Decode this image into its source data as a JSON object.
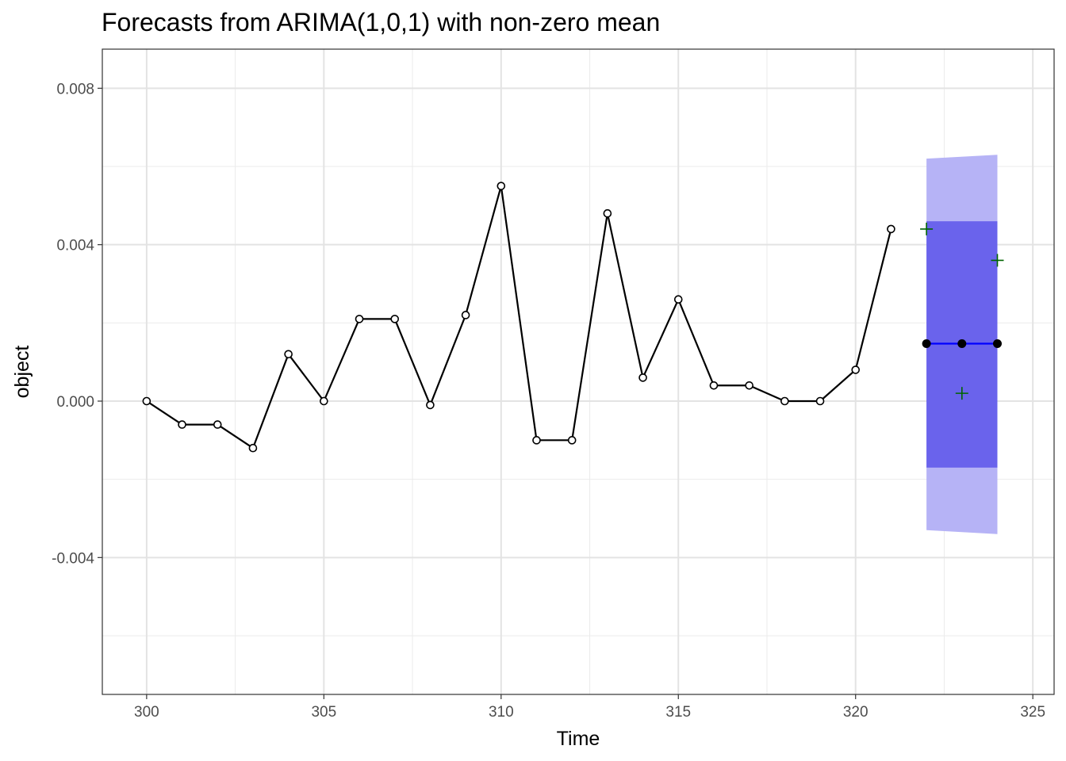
{
  "chart_data": {
    "type": "line",
    "title": "Forecasts from ARIMA(1,0,1) with non-zero mean",
    "xlabel": "Time",
    "ylabel": "object",
    "xlim": [
      298.75,
      325.6
    ],
    "ylim": [
      -0.0075,
      0.009
    ],
    "x_ticks": [
      300,
      305,
      310,
      315,
      320,
      325
    ],
    "x_tick_labels": [
      "300",
      "305",
      "310",
      "315",
      "320",
      "325"
    ],
    "y_ticks": [
      -0.004,
      0.0,
      0.004,
      0.008
    ],
    "y_tick_labels": [
      "-0.004",
      "0.000",
      "0.004",
      "0.008"
    ],
    "grid": true,
    "legend": "none",
    "series": [
      {
        "role": "observed",
        "x": [
          300,
          301,
          302,
          303,
          304,
          305,
          306,
          307,
          308,
          309,
          310,
          311,
          312,
          313,
          314,
          315,
          316,
          317,
          318,
          319,
          320,
          321
        ],
        "y": [
          0.0,
          -0.0006,
          -0.0006,
          -0.0012,
          0.0012,
          0.0,
          0.0021,
          0.0021,
          -0.0001,
          0.0022,
          0.0055,
          -0.001,
          -0.001,
          0.0048,
          0.0006,
          0.0026,
          0.0004,
          0.0004,
          0.0,
          0.0,
          0.0008,
          0.0044
        ],
        "color": "#000000",
        "marker": "open-circle"
      },
      {
        "role": "forecast-mean",
        "x": [
          322,
          323,
          324
        ],
        "y": [
          0.00147,
          0.00147,
          0.00147
        ],
        "color": "#0000ff",
        "marker": "filled-circle"
      },
      {
        "role": "actual",
        "x": [
          322,
          323,
          324
        ],
        "y": [
          0.0044,
          0.0002,
          0.0036
        ],
        "color": "#006400",
        "marker": "plus"
      }
    ],
    "intervals": [
      {
        "level": 95,
        "x": [
          322,
          324
        ],
        "lower": [
          -0.0033,
          -0.0034
        ],
        "upper": [
          0.0062,
          0.0063
        ],
        "color": "#b6b3f6"
      },
      {
        "level": 80,
        "x": [
          322,
          324
        ],
        "lower": [
          -0.0017,
          -0.0017
        ],
        "upper": [
          0.0046,
          0.0046
        ],
        "color": "#6a63ec"
      }
    ]
  }
}
